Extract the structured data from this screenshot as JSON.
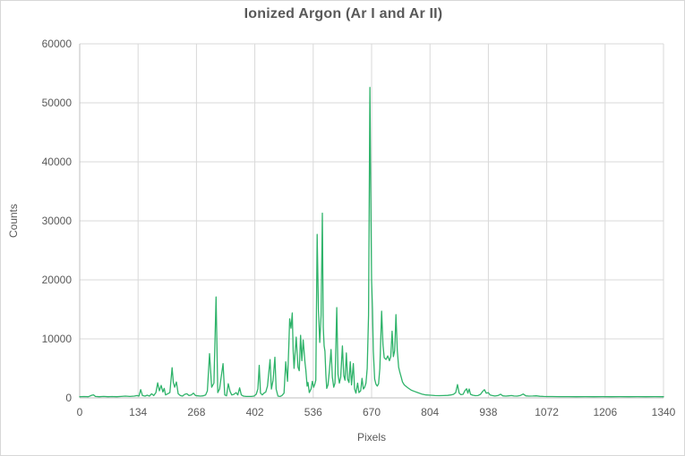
{
  "chart": {
    "title": "Ionized Argon (Ar I and Ar II)",
    "xlabel": "Pixels",
    "ylabel": "Counts"
  },
  "colors": {
    "line": "#2fb36a",
    "gridline": "#d9d9d9",
    "axis_line": "#bfbfbf",
    "text": "#595959",
    "background": "#ffffff"
  },
  "chart_data": {
    "type": "line",
    "title": "Ionized Argon (Ar I and Ar II)",
    "xlabel": "Pixels",
    "ylabel": "Counts",
    "xlim": [
      0,
      1340
    ],
    "ylim": [
      0,
      60000
    ],
    "x_ticks": [
      0,
      134,
      268,
      402,
      536,
      670,
      804,
      938,
      1072,
      1206,
      1340
    ],
    "y_ticks": [
      0,
      10000,
      20000,
      30000,
      40000,
      50000,
      60000
    ],
    "grid": true,
    "legend": false,
    "series": [
      {
        "name": "Counts",
        "points": [
          [
            0,
            200
          ],
          [
            10,
            220
          ],
          [
            20,
            200
          ],
          [
            28,
            450
          ],
          [
            32,
            500
          ],
          [
            36,
            250
          ],
          [
            45,
            200
          ],
          [
            55,
            250
          ],
          [
            65,
            200
          ],
          [
            75,
            220
          ],
          [
            85,
            200
          ],
          [
            95,
            250
          ],
          [
            105,
            300
          ],
          [
            115,
            250
          ],
          [
            125,
            300
          ],
          [
            132,
            400
          ],
          [
            136,
            300
          ],
          [
            140,
            1400
          ],
          [
            144,
            400
          ],
          [
            150,
            300
          ],
          [
            155,
            450
          ],
          [
            160,
            300
          ],
          [
            165,
            700
          ],
          [
            170,
            400
          ],
          [
            175,
            900
          ],
          [
            179,
            2550
          ],
          [
            183,
            1200
          ],
          [
            187,
            2100
          ],
          [
            191,
            1000
          ],
          [
            194,
            1600
          ],
          [
            197,
            500
          ],
          [
            202,
            700
          ],
          [
            207,
            900
          ],
          [
            212,
            5100
          ],
          [
            215,
            2600
          ],
          [
            218,
            1800
          ],
          [
            222,
            2700
          ],
          [
            226,
            700
          ],
          [
            231,
            400
          ],
          [
            236,
            300
          ],
          [
            241,
            600
          ],
          [
            246,
            700
          ],
          [
            251,
            400
          ],
          [
            256,
            500
          ],
          [
            261,
            800
          ],
          [
            266,
            400
          ],
          [
            271,
            350
          ],
          [
            277,
            300
          ],
          [
            283,
            350
          ],
          [
            289,
            500
          ],
          [
            293,
            1200
          ],
          [
            298,
            7500
          ],
          [
            303,
            1800
          ],
          [
            308,
            2500
          ],
          [
            313,
            17100
          ],
          [
            317,
            900
          ],
          [
            321,
            1500
          ],
          [
            325,
            3600
          ],
          [
            329,
            5800
          ],
          [
            333,
            500
          ],
          [
            337,
            350
          ],
          [
            341,
            2400
          ],
          [
            345,
            1100
          ],
          [
            349,
            500
          ],
          [
            354,
            600
          ],
          [
            359,
            900
          ],
          [
            363,
            500
          ],
          [
            367,
            1700
          ],
          [
            371,
            500
          ],
          [
            376,
            300
          ],
          [
            382,
            250
          ],
          [
            388,
            250
          ],
          [
            394,
            250
          ],
          [
            400,
            300
          ],
          [
            405,
            600
          ],
          [
            409,
            1500
          ],
          [
            412,
            5500
          ],
          [
            415,
            800
          ],
          [
            419,
            500
          ],
          [
            423,
            800
          ],
          [
            427,
            1000
          ],
          [
            431,
            2000
          ],
          [
            437,
            6500
          ],
          [
            440,
            1500
          ],
          [
            444,
            3000
          ],
          [
            448,
            6900
          ],
          [
            451,
            1500
          ],
          [
            455,
            300
          ],
          [
            460,
            250
          ],
          [
            464,
            400
          ],
          [
            469,
            800
          ],
          [
            473,
            6100
          ],
          [
            477,
            2800
          ],
          [
            480,
            9000
          ],
          [
            482,
            13400
          ],
          [
            485,
            11800
          ],
          [
            488,
            14400
          ],
          [
            490,
            8000
          ],
          [
            492,
            5000
          ],
          [
            497,
            10300
          ],
          [
            501,
            5200
          ],
          [
            504,
            4600
          ],
          [
            507,
            10600
          ],
          [
            510,
            6300
          ],
          [
            513,
            9800
          ],
          [
            517,
            6000
          ],
          [
            519,
            4800
          ],
          [
            522,
            2000
          ],
          [
            524,
            2600
          ],
          [
            527,
            900
          ],
          [
            531,
            1500
          ],
          [
            534,
            2800
          ],
          [
            537,
            1800
          ],
          [
            540,
            2400
          ],
          [
            542,
            3000
          ],
          [
            545,
            27700
          ],
          [
            548,
            15000
          ],
          [
            551,
            9400
          ],
          [
            554,
            14000
          ],
          [
            557,
            31300
          ],
          [
            559,
            12000
          ],
          [
            561,
            8800
          ],
          [
            563,
            7900
          ],
          [
            565,
            4000
          ],
          [
            567,
            1600
          ],
          [
            570,
            2200
          ],
          [
            573,
            4500
          ],
          [
            577,
            8200
          ],
          [
            580,
            3500
          ],
          [
            583,
            1800
          ],
          [
            586,
            2500
          ],
          [
            590,
            15300
          ],
          [
            593,
            4000
          ],
          [
            596,
            2500
          ],
          [
            599,
            3500
          ],
          [
            603,
            8800
          ],
          [
            606,
            3800
          ],
          [
            609,
            3000
          ],
          [
            612,
            7600
          ],
          [
            615,
            3200
          ],
          [
            618,
            2600
          ],
          [
            621,
            6100
          ],
          [
            624,
            2200
          ],
          [
            628,
            5800
          ],
          [
            631,
            1500
          ],
          [
            634,
            800
          ],
          [
            638,
            2500
          ],
          [
            641,
            900
          ],
          [
            645,
            1200
          ],
          [
            648,
            3300
          ],
          [
            651,
            1500
          ],
          [
            654,
            1800
          ],
          [
            657,
            2500
          ],
          [
            660,
            5000
          ],
          [
            663,
            14000
          ],
          [
            666,
            52600
          ],
          [
            668,
            35000
          ],
          [
            670,
            19800
          ],
          [
            672,
            15000
          ],
          [
            674,
            8000
          ],
          [
            677,
            3200
          ],
          [
            680,
            2300
          ],
          [
            683,
            2000
          ],
          [
            686,
            2400
          ],
          [
            689,
            5000
          ],
          [
            693,
            14700
          ],
          [
            696,
            9000
          ],
          [
            699,
            6800
          ],
          [
            703,
            6500
          ],
          [
            707,
            7100
          ],
          [
            711,
            6300
          ],
          [
            714,
            7000
          ],
          [
            717,
            11300
          ],
          [
            720,
            7000
          ],
          [
            723,
            8000
          ],
          [
            726,
            14100
          ],
          [
            729,
            8000
          ],
          [
            732,
            5200
          ],
          [
            735,
            4300
          ],
          [
            738,
            3500
          ],
          [
            741,
            2700
          ],
          [
            745,
            2200
          ],
          [
            750,
            1900
          ],
          [
            755,
            1600
          ],
          [
            761,
            1300
          ],
          [
            768,
            1100
          ],
          [
            776,
            900
          ],
          [
            785,
            650
          ],
          [
            795,
            500
          ],
          [
            805,
            450
          ],
          [
            815,
            400
          ],
          [
            825,
            380
          ],
          [
            835,
            400
          ],
          [
            845,
            420
          ],
          [
            852,
            500
          ],
          [
            858,
            600
          ],
          [
            863,
            900
          ],
          [
            867,
            2250
          ],
          [
            871,
            800
          ],
          [
            875,
            550
          ],
          [
            880,
            600
          ],
          [
            884,
            1200
          ],
          [
            888,
            1550
          ],
          [
            891,
            800
          ],
          [
            894,
            1500
          ],
          [
            897,
            600
          ],
          [
            902,
            450
          ],
          [
            908,
            380
          ],
          [
            914,
            400
          ],
          [
            920,
            600
          ],
          [
            925,
            1100
          ],
          [
            929,
            1400
          ],
          [
            933,
            800
          ],
          [
            938,
            900
          ],
          [
            942,
            500
          ],
          [
            947,
            400
          ],
          [
            953,
            320
          ],
          [
            960,
            400
          ],
          [
            966,
            620
          ],
          [
            971,
            350
          ],
          [
            978,
            300
          ],
          [
            985,
            350
          ],
          [
            991,
            400
          ],
          [
            997,
            320
          ],
          [
            1004,
            300
          ],
          [
            1011,
            400
          ],
          [
            1018,
            650
          ],
          [
            1024,
            350
          ],
          [
            1031,
            300
          ],
          [
            1040,
            320
          ],
          [
            1048,
            350
          ],
          [
            1056,
            280
          ],
          [
            1065,
            250
          ],
          [
            1075,
            230
          ],
          [
            1085,
            220
          ],
          [
            1100,
            210
          ],
          [
            1120,
            210
          ],
          [
            1140,
            200
          ],
          [
            1160,
            210
          ],
          [
            1180,
            200
          ],
          [
            1200,
            210
          ],
          [
            1220,
            200
          ],
          [
            1240,
            210
          ],
          [
            1260,
            200
          ],
          [
            1280,
            210
          ],
          [
            1300,
            200
          ],
          [
            1320,
            210
          ],
          [
            1340,
            200
          ]
        ]
      }
    ]
  }
}
